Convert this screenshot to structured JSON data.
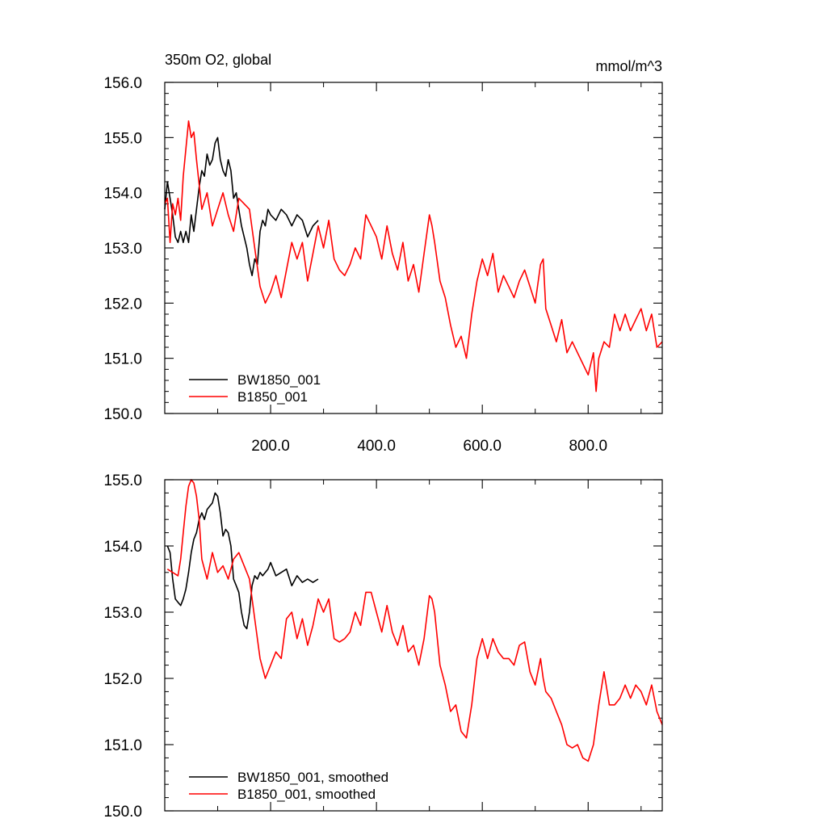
{
  "colors": {
    "series_1": "#000000",
    "series_2": "#ff0000",
    "axes": "#000000",
    "background": "#ffffff"
  },
  "chart_data": [
    {
      "type": "line",
      "title": "350m O2, global",
      "units": "mmol/m^3",
      "xlabel": "",
      "ylabel": "",
      "xlim": [
        0,
        940
      ],
      "ylim": [
        150,
        156
      ],
      "x_ticks": [
        200,
        400,
        600,
        800
      ],
      "x_tick_labels": [
        "200.0",
        "400.0",
        "600.0",
        "800.0"
      ],
      "y_ticks": [
        150,
        151,
        152,
        153,
        154,
        155,
        156
      ],
      "y_tick_labels": [
        "150.0",
        "151.0",
        "152.0",
        "153.0",
        "154.0",
        "155.0",
        "156.0"
      ],
      "grid": false,
      "legend_position": "bottom-left",
      "series": [
        {
          "name": "BW1850_001",
          "color": "#000000",
          "x": [
            0,
            5,
            10,
            15,
            20,
            25,
            30,
            35,
            40,
            45,
            50,
            55,
            60,
            65,
            70,
            75,
            80,
            85,
            90,
            95,
            100,
            105,
            110,
            115,
            120,
            125,
            130,
            135,
            140,
            145,
            150,
            155,
            160,
            165,
            170,
            175,
            180,
            185,
            190,
            195,
            200,
            210,
            220,
            230,
            240,
            250,
            260,
            270,
            280,
            290
          ],
          "values": [
            153.7,
            154.2,
            153.9,
            153.6,
            153.2,
            153.1,
            153.3,
            153.1,
            153.3,
            153.1,
            153.6,
            153.3,
            153.7,
            154.1,
            154.4,
            154.3,
            154.7,
            154.5,
            154.6,
            154.9,
            155.0,
            154.6,
            154.4,
            154.3,
            154.6,
            154.4,
            153.9,
            154.0,
            153.7,
            153.4,
            153.2,
            153.0,
            152.7,
            152.5,
            152.8,
            152.7,
            153.3,
            153.5,
            153.4,
            153.7,
            153.6,
            153.5,
            153.7,
            153.6,
            153.4,
            153.6,
            153.5,
            153.2,
            153.4,
            153.5
          ]
        },
        {
          "name": "B1850_001",
          "color": "#ff0000",
          "x": [
            0,
            5,
            10,
            15,
            20,
            25,
            30,
            35,
            40,
            45,
            50,
            55,
            60,
            70,
            80,
            90,
            100,
            110,
            120,
            130,
            140,
            150,
            160,
            170,
            180,
            190,
            200,
            210,
            220,
            230,
            240,
            250,
            260,
            270,
            280,
            290,
            300,
            310,
            320,
            330,
            340,
            350,
            360,
            370,
            380,
            390,
            400,
            410,
            420,
            430,
            440,
            450,
            460,
            470,
            480,
            490,
            500,
            505,
            510,
            520,
            530,
            540,
            550,
            560,
            570,
            580,
            590,
            600,
            610,
            620,
            630,
            640,
            650,
            660,
            670,
            680,
            690,
            700,
            710,
            715,
            720,
            730,
            740,
            750,
            760,
            770,
            780,
            790,
            800,
            810,
            815,
            820,
            830,
            840,
            850,
            860,
            870,
            880,
            890,
            900,
            910,
            920,
            930,
            940
          ],
          "values": [
            153.8,
            153.9,
            153.1,
            153.8,
            153.6,
            153.9,
            153.5,
            154.3,
            154.8,
            155.3,
            155.0,
            155.1,
            154.6,
            153.7,
            154.0,
            153.4,
            153.7,
            154.0,
            153.6,
            153.3,
            153.9,
            153.8,
            153.7,
            153.0,
            152.3,
            152.0,
            152.2,
            152.5,
            152.1,
            152.6,
            153.1,
            152.8,
            153.1,
            152.4,
            152.9,
            153.4,
            153.0,
            153.5,
            152.8,
            152.6,
            152.5,
            152.7,
            153.0,
            152.8,
            153.6,
            153.4,
            153.2,
            152.8,
            153.4,
            152.9,
            152.6,
            153.1,
            152.4,
            152.7,
            152.2,
            152.9,
            153.6,
            153.4,
            153.1,
            152.4,
            152.1,
            151.6,
            151.2,
            151.4,
            151.0,
            151.8,
            152.4,
            152.8,
            152.5,
            152.9,
            152.2,
            152.5,
            152.3,
            152.1,
            152.4,
            152.6,
            152.3,
            152.0,
            152.7,
            152.8,
            151.9,
            151.6,
            151.3,
            151.7,
            151.1,
            151.3,
            151.1,
            150.9,
            150.7,
            151.1,
            150.4,
            151.0,
            151.3,
            151.2,
            151.8,
            151.5,
            151.8,
            151.5,
            151.7,
            151.9,
            151.5,
            151.8,
            151.2,
            151.3
          ]
        }
      ]
    },
    {
      "type": "line",
      "title": "",
      "xlabel": "",
      "ylabel": "",
      "xlim": [
        0,
        940
      ],
      "ylim": [
        150,
        155
      ],
      "x_ticks": [
        200,
        400,
        600,
        800
      ],
      "y_ticks": [
        150,
        151,
        152,
        153,
        154,
        155
      ],
      "y_tick_labels": [
        "150.0",
        "151.0",
        "152.0",
        "153.0",
        "154.0",
        "155.0"
      ],
      "grid": false,
      "legend_position": "bottom-left",
      "series": [
        {
          "name": "BW1850_001, smoothed",
          "color": "#000000",
          "x": [
            5,
            10,
            15,
            20,
            25,
            30,
            35,
            40,
            45,
            50,
            55,
            60,
            65,
            70,
            75,
            80,
            85,
            90,
            95,
            100,
            105,
            110,
            115,
            120,
            125,
            130,
            135,
            140,
            145,
            150,
            155,
            160,
            165,
            170,
            175,
            180,
            185,
            190,
            195,
            200,
            210,
            220,
            230,
            240,
            250,
            260,
            270,
            280,
            290
          ],
          "values": [
            154.0,
            153.9,
            153.5,
            153.2,
            153.15,
            153.1,
            153.2,
            153.35,
            153.6,
            153.9,
            154.1,
            154.2,
            154.4,
            154.5,
            154.4,
            154.55,
            154.6,
            154.65,
            154.8,
            154.75,
            154.5,
            154.15,
            154.25,
            154.2,
            154.0,
            153.5,
            153.4,
            153.3,
            153.0,
            152.8,
            152.75,
            153.0,
            153.4,
            153.55,
            153.5,
            153.6,
            153.55,
            153.6,
            153.65,
            153.75,
            153.55,
            153.6,
            153.65,
            153.4,
            153.55,
            153.45,
            153.5,
            153.45,
            153.5
          ]
        },
        {
          "name": "B1850_001, smoothed",
          "color": "#ff0000",
          "x": [
            5,
            15,
            25,
            30,
            35,
            40,
            45,
            50,
            55,
            60,
            65,
            70,
            80,
            90,
            100,
            110,
            120,
            130,
            140,
            150,
            160,
            170,
            180,
            190,
            200,
            210,
            220,
            230,
            240,
            250,
            260,
            270,
            280,
            290,
            300,
            310,
            320,
            330,
            340,
            350,
            360,
            370,
            380,
            390,
            400,
            410,
            420,
            430,
            440,
            450,
            460,
            470,
            480,
            490,
            500,
            505,
            510,
            520,
            530,
            540,
            550,
            560,
            570,
            580,
            590,
            600,
            610,
            620,
            630,
            640,
            650,
            660,
            670,
            680,
            690,
            700,
            710,
            715,
            720,
            730,
            740,
            750,
            760,
            770,
            780,
            790,
            800,
            810,
            815,
            820,
            830,
            840,
            850,
            860,
            870,
            880,
            890,
            900,
            910,
            920,
            930,
            940
          ],
          "values": [
            153.65,
            153.6,
            153.55,
            153.8,
            154.2,
            154.6,
            154.9,
            155.0,
            154.95,
            154.75,
            154.4,
            153.8,
            153.5,
            153.9,
            153.6,
            153.7,
            153.5,
            153.8,
            153.9,
            153.7,
            153.5,
            152.9,
            152.3,
            152.0,
            152.2,
            152.4,
            152.3,
            152.9,
            153.0,
            152.6,
            152.9,
            152.5,
            152.8,
            153.2,
            153.0,
            153.2,
            152.6,
            152.55,
            152.6,
            152.7,
            153.0,
            152.8,
            153.3,
            153.3,
            153.0,
            152.7,
            153.1,
            152.7,
            152.5,
            152.8,
            152.4,
            152.5,
            152.2,
            152.6,
            153.25,
            153.2,
            153.0,
            152.2,
            151.9,
            151.5,
            151.6,
            151.2,
            151.1,
            151.6,
            152.3,
            152.6,
            152.3,
            152.6,
            152.4,
            152.3,
            152.3,
            152.2,
            152.5,
            152.55,
            152.1,
            151.9,
            152.3,
            152.0,
            151.8,
            151.7,
            151.5,
            151.3,
            151.0,
            150.95,
            151.0,
            150.8,
            150.75,
            151.0,
            151.3,
            151.6,
            152.1,
            151.6,
            151.6,
            151.7,
            151.9,
            151.7,
            151.9,
            151.8,
            151.6,
            151.9,
            151.5,
            151.3
          ]
        }
      ]
    }
  ]
}
